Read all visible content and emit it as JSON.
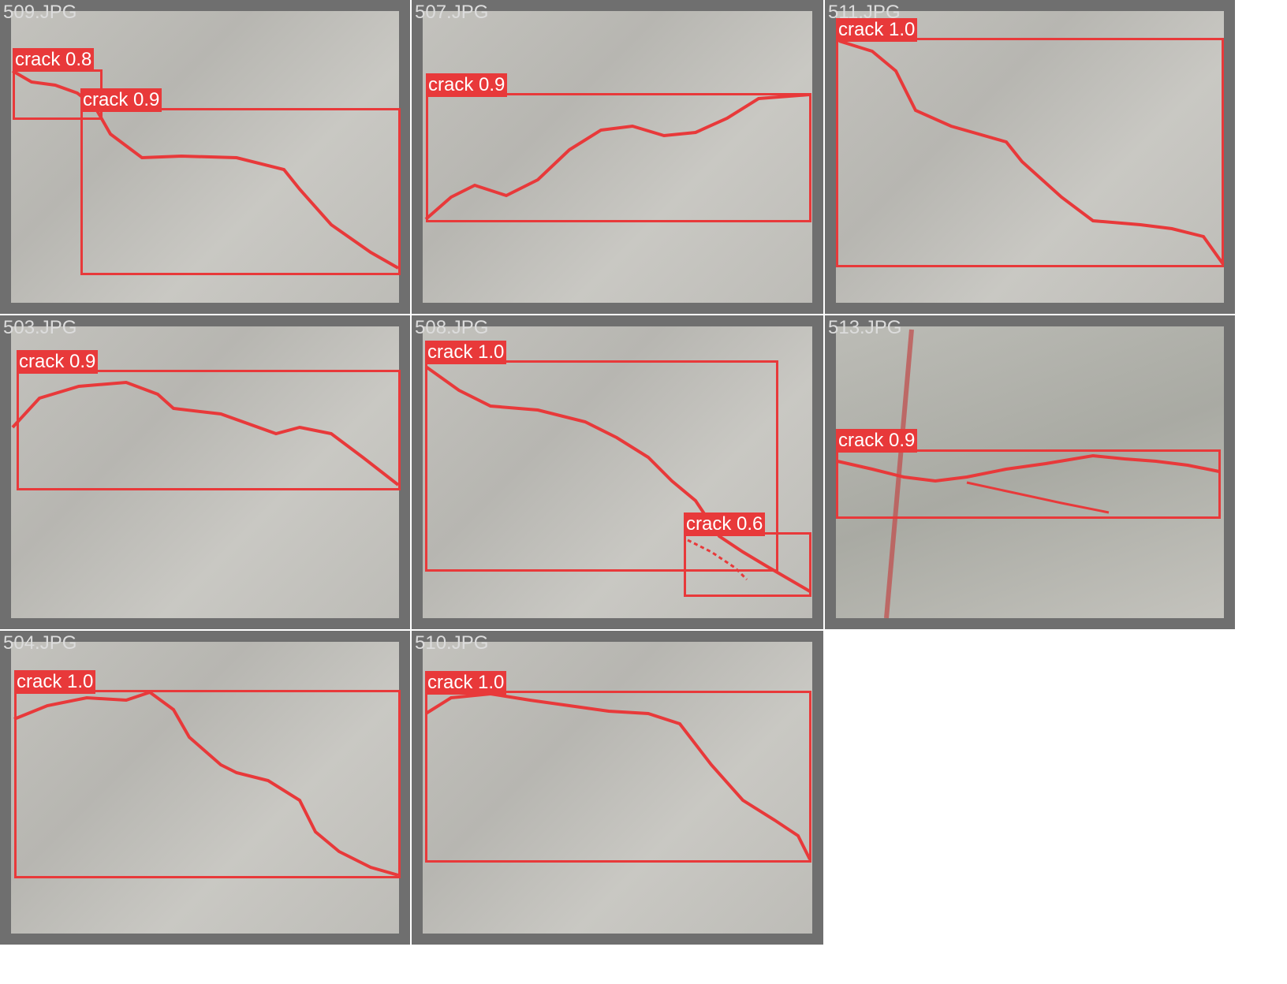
{
  "colors": {
    "tile_border": "#6f6f6f",
    "detection": "#e8393a",
    "filename_text": "#dcdcdc"
  },
  "tiles": [
    {
      "filename": "509.JPG",
      "detections": [
        {
          "label": "crack 0.8"
        },
        {
          "label": "crack 0.9"
        }
      ]
    },
    {
      "filename": "507.JPG",
      "detections": [
        {
          "label": "crack 0.9"
        }
      ]
    },
    {
      "filename": "511.JPG",
      "detections": [
        {
          "label": "crack 1.0"
        }
      ]
    },
    {
      "filename": "503.JPG",
      "detections": [
        {
          "label": "crack 0.9"
        }
      ]
    },
    {
      "filename": "508.JPG",
      "detections": [
        {
          "label": "crack 1.0"
        },
        {
          "label": "crack 0.6"
        }
      ]
    },
    {
      "filename": "513.JPG",
      "detections": [
        {
          "label": "crack 0.9"
        }
      ]
    },
    {
      "filename": "504.JPG",
      "detections": [
        {
          "label": "crack 1.0"
        }
      ]
    },
    {
      "filename": "510.JPG",
      "detections": [
        {
          "label": "crack 1.0"
        }
      ]
    }
  ]
}
